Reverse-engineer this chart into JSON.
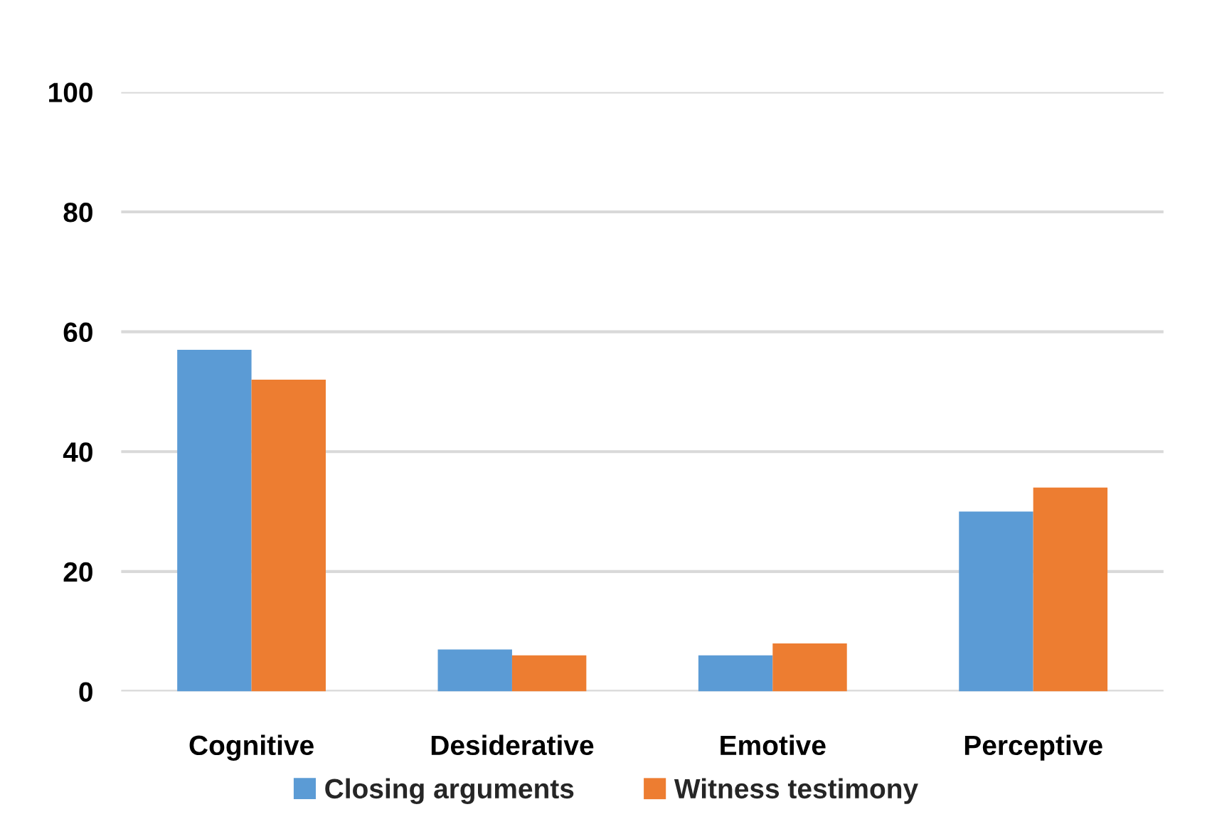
{
  "chart_data": {
    "type": "bar",
    "categories": [
      "Cognitive",
      "Desiderative",
      "Emotive",
      "Perceptive"
    ],
    "series": [
      {
        "name": "Closing arguments",
        "color": "#5b9bd5",
        "values": [
          57,
          7,
          6,
          30
        ]
      },
      {
        "name": "Witness testimony",
        "color": "#ed7d31",
        "values": [
          52,
          6,
          8,
          34
        ]
      }
    ],
    "ylim": [
      0,
      100
    ],
    "yticks": [
      0,
      20,
      40,
      60,
      80,
      100
    ],
    "grid": "y",
    "legend": "bottom"
  }
}
